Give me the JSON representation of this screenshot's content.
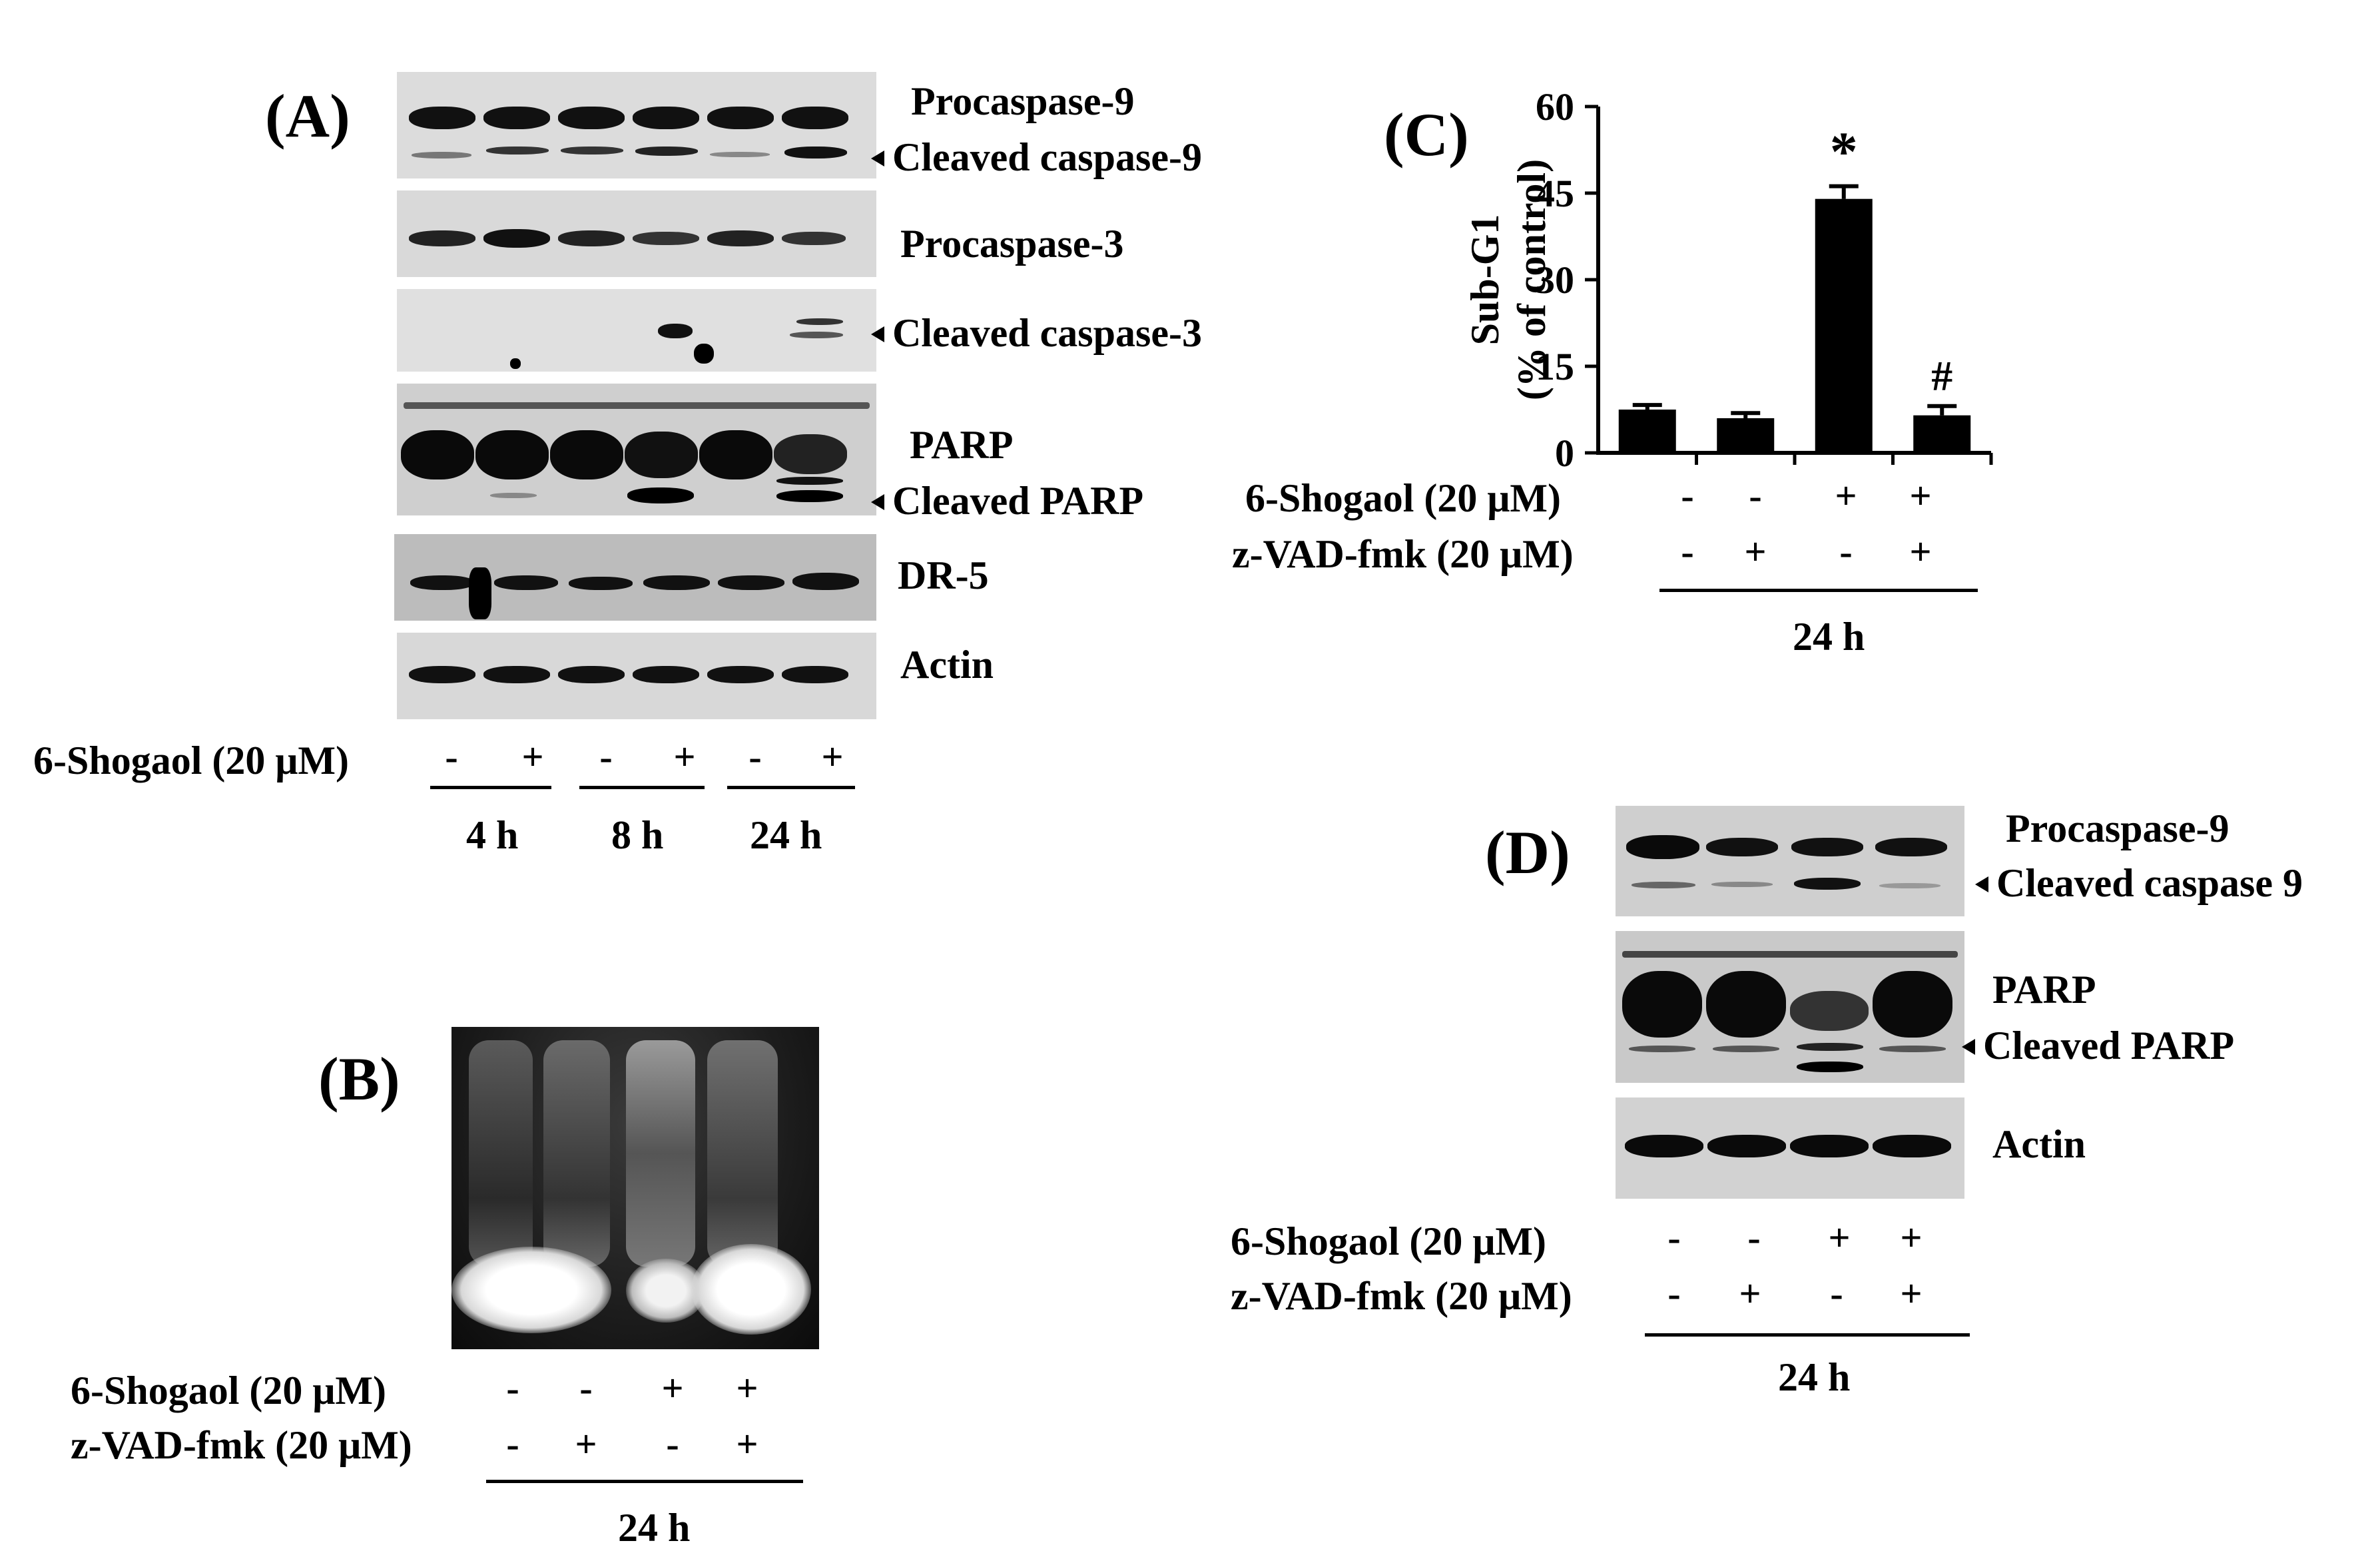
{
  "panelA": {
    "letter": "(A)",
    "blots": [
      "Procaspase-9",
      "Cleaved caspase-9",
      "Procaspase-3",
      "Cleaved caspase-3",
      "PARP",
      "Cleaved PARP",
      "DR-5",
      "Actin"
    ],
    "treatment_label": "6-Shogaol (20 μM)",
    "signs": [
      "-",
      "+",
      "-",
      "+",
      "-",
      "+"
    ],
    "times": [
      "4 h",
      "8 h",
      "24 h"
    ]
  },
  "panelB": {
    "letter": "(B)",
    "row1_label": "6-Shogaol (20 μM)",
    "row1_signs": [
      "-",
      "-",
      "+",
      "+"
    ],
    "row2_label": "z-VAD-fmk (20 μM)",
    "row2_signs": [
      "-",
      "+",
      "-",
      "+"
    ],
    "time": "24 h"
  },
  "panelC": {
    "letter": "(C)",
    "row1_label": "6-Shogaol (20 μM)",
    "row1_signs": [
      "-",
      "-",
      "+",
      "+"
    ],
    "row2_label": "z-VAD-fmk (20 μM)",
    "row2_signs": [
      "-",
      "+",
      "-",
      "+"
    ],
    "time": "24 h"
  },
  "panelD": {
    "letter": "(D)",
    "blots": [
      "Procaspase-9",
      "Cleaved caspase 9",
      "PARP",
      "Cleaved PARP",
      "Actin"
    ],
    "row1_label": "6-Shogaol (20 μM)",
    "row1_signs": [
      "-",
      "-",
      "+",
      "+"
    ],
    "row2_label": "z-VAD-fmk (20 μM)",
    "row2_signs": [
      "-",
      "+",
      "-",
      "+"
    ],
    "time": "24 h"
  },
  "chart_data": {
    "type": "bar",
    "title": "",
    "ylabel_line1": "Sub-G1",
    "ylabel_line2": "(% of control)",
    "ylim": [
      0,
      60
    ],
    "yticks": [
      0,
      15,
      30,
      45,
      60
    ],
    "categories": [
      "1",
      "2",
      "3",
      "4"
    ],
    "values": [
      7.5,
      6,
      44,
      6.5
    ],
    "errors": [
      0.8,
      0.9,
      2.2,
      1.6
    ],
    "annotations": [
      "",
      "",
      "*",
      "#"
    ],
    "bar_color": "#000000"
  }
}
